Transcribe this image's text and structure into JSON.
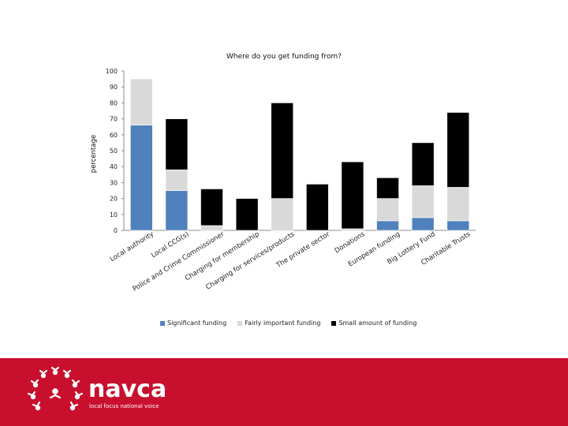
{
  "chart_data": {
    "type": "bar",
    "stacked": true,
    "title": "Where do you get funding from?",
    "xlabel": "",
    "ylabel": "percentage",
    "ylim": [
      0,
      100
    ],
    "yticks": [
      0,
      10,
      20,
      30,
      40,
      50,
      60,
      70,
      80,
      90,
      100
    ],
    "grid": false,
    "legend_position": "bottom",
    "categories": [
      "Local authority",
      "Local CCG(s)",
      "Police and Crime Commissioner",
      "Charging for membership",
      "Charging for services/products",
      "The private sector",
      "Donations",
      "European funding",
      "Big Lottery Fund",
      "Charitable Trusts"
    ],
    "series": [
      {
        "name": "Significant funding",
        "color": "#4f81bd",
        "values": [
          66,
          25,
          0,
          0,
          0,
          0,
          0,
          6,
          8,
          6
        ]
      },
      {
        "name": "Fairly important funding",
        "color": "#d9d9d9",
        "values": [
          29,
          13,
          3,
          0,
          20,
          0,
          1,
          14,
          20,
          21
        ]
      },
      {
        "name": "Small amount of funding",
        "color": "#000000",
        "values": [
          0,
          32,
          23,
          20,
          60,
          29,
          42,
          13,
          27,
          47
        ]
      }
    ]
  },
  "footer": {
    "brand_name": "navca",
    "tagline": "local focus national voice"
  }
}
